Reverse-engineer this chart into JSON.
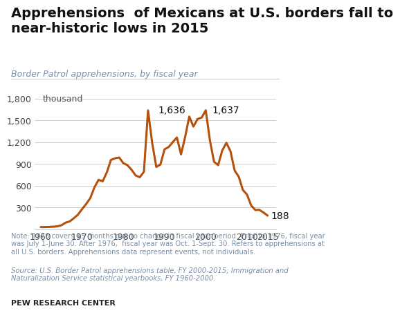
{
  "title": "Apprehensions  of Mexicans at U.S. borders fall to\nnear-historic lows in 2015",
  "subtitle": "Border Patrol apprehensions, by fiscal year",
  "unit_label": "thousand",
  "line_color": "#b5510a",
  "line_width": 2.2,
  "background_color": "#ffffff",
  "grid_color": "#cccccc",
  "years": [
    1960,
    1961,
    1962,
    1963,
    1964,
    1965,
    1966,
    1967,
    1968,
    1969,
    1970,
    1971,
    1972,
    1973,
    1974,
    1975,
    1976,
    1977,
    1978,
    1979,
    1980,
    1981,
    1982,
    1983,
    1984,
    1985,
    1986,
    1987,
    1988,
    1989,
    1990,
    1991,
    1992,
    1993,
    1994,
    1995,
    1996,
    1997,
    1998,
    1999,
    2000,
    2001,
    2002,
    2003,
    2004,
    2005,
    2006,
    2007,
    2008,
    2009,
    2010,
    2011,
    2012,
    2013,
    2014,
    2015
  ],
  "values": [
    30,
    30,
    32,
    35,
    40,
    55,
    90,
    108,
    151,
    201,
    277,
    348,
    430,
    576,
    680,
    660,
    781,
    954,
    976,
    988,
    910,
    882,
    819,
    740,
    716,
    791,
    1636,
    1190,
    858,
    891,
    1100,
    1132,
    1199,
    1263,
    1031,
    1271,
    1551,
    1413,
    1517,
    1537,
    1637,
    1224,
    929,
    882,
    1085,
    1190,
    1072,
    808,
    723,
    540,
    477,
    328,
    265,
    267,
    230,
    188
  ],
  "yticks": [
    0,
    300,
    600,
    900,
    1200,
    1500,
    1800
  ],
  "ytick_labels": [
    "",
    "300",
    "600",
    "900",
    "1,200",
    "1,500",
    "1,800"
  ],
  "xticks": [
    1960,
    1970,
    1980,
    1990,
    2000,
    2010,
    2015
  ],
  "xlim": [
    1958.5,
    2017
  ],
  "ylim": [
    0,
    1900
  ],
  "note_text": "Note: 1976 covers 15 months due to change in fiscal year period. Prior to 1976, fiscal year\nwas July 1-June 30. After 1976,  fiscal year was Oct. 1-Sept. 30. Refers to apprehensions at\nall U.S. borders. Apprehensions data represent events, not individuals.",
  "source_text": "Source: U.S. Border Patrol apprehensions table, FY 2000-2015; Immigration and\nNaturalization Service statistical yearbooks, FY 1960-2000.",
  "footer_text": "PEW RESEARCH CENTER",
  "title_fontsize": 14,
  "subtitle_fontsize": 9,
  "axis_fontsize": 9,
  "annotation_fontsize": 10,
  "note_fontsize": 7.2,
  "footer_fontsize": 8,
  "subtitle_color": "#7a8fa6",
  "note_color": "#7a8fa6",
  "footer_color": "#222222",
  "title_color": "#111111"
}
